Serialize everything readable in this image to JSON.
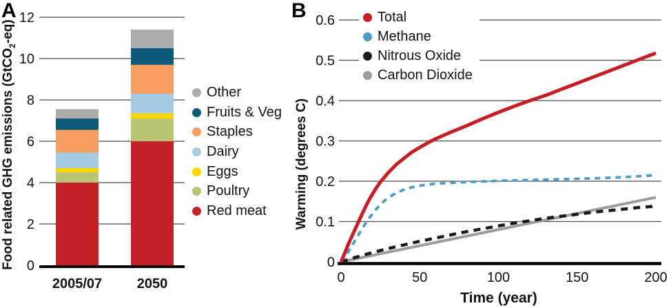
{
  "panels": [
    {
      "letter": "A",
      "y_axis_title_pre": "Food related GHG emissions (GtCO",
      "y_axis_title_sub": "2",
      "y_axis_title_post": "-eq)"
    },
    {
      "letter": "B",
      "y_axis_title": "Warming (degrees C)",
      "x_axis_title": "Time (year)"
    }
  ],
  "chart_data": [
    {
      "type": "bar",
      "stacked": true,
      "title": "",
      "xlabel": "",
      "ylabel": "Food related GHG emissions (GtCO2-eq)",
      "categories": [
        "2005/07",
        "2050"
      ],
      "ylim": [
        0,
        12
      ],
      "yticks": [
        0,
        2,
        4,
        6,
        8,
        10,
        12
      ],
      "ytick_labels": [
        "0",
        "2",
        "4",
        "6",
        "8",
        "10",
        "12"
      ],
      "grid": "horizontal",
      "legend_position": "right",
      "legend_order_top_to_bottom": [
        "Other",
        "Fruits & Veg",
        "Staples",
        "Dairy",
        "Eggs",
        "Poultry",
        "Red meat"
      ],
      "series": [
        {
          "name": "Red meat",
          "color": "#c32127",
          "values": [
            4.0,
            6.0
          ]
        },
        {
          "name": "Poultry",
          "color": "#b9c573",
          "values": [
            0.5,
            1.1
          ]
        },
        {
          "name": "Eggs",
          "color": "#fdd703",
          "values": [
            0.2,
            0.25
          ]
        },
        {
          "name": "Dairy",
          "color": "#a5cbe2",
          "values": [
            0.75,
            0.95
          ]
        },
        {
          "name": "Staples",
          "color": "#f79f60",
          "values": [
            1.1,
            1.4
          ]
        },
        {
          "name": "Fruits & Veg",
          "color": "#0d5a78",
          "values": [
            0.55,
            0.8
          ]
        },
        {
          "name": "Other",
          "color": "#ababab",
          "values": [
            0.45,
            0.9
          ]
        }
      ],
      "totals": [
        7.55,
        11.4
      ]
    },
    {
      "type": "line",
      "title": "",
      "xlabel": "Time (year)",
      "ylabel": "Warming (degrees C)",
      "xlim": [
        0,
        200
      ],
      "ylim": [
        0,
        0.6
      ],
      "xticks": [
        0,
        50,
        100,
        150,
        200
      ],
      "xtick_labels": [
        "0",
        "50",
        "100",
        "150",
        "200"
      ],
      "yticks": [
        0,
        0.1,
        0.2,
        0.3,
        0.4,
        0.5,
        0.6
      ],
      "ytick_labels": [
        "0",
        "0.1",
        "0.2",
        "0.3",
        "0.4",
        "0.5",
        "0.6"
      ],
      "grid": "horizontal",
      "legend_position": "top-left",
      "series": [
        {
          "name": "Total",
          "color": "#c41e27",
          "style": "solid",
          "points": [
            [
              0,
              0
            ],
            [
              3,
              0.028
            ],
            [
              5,
              0.047
            ],
            [
              8,
              0.073
            ],
            [
              10,
              0.09
            ],
            [
              12,
              0.107
            ],
            [
              15,
              0.132
            ],
            [
              18,
              0.155
            ],
            [
              20,
              0.168
            ],
            [
              22,
              0.181
            ],
            [
              25,
              0.198
            ],
            [
              28,
              0.212
            ],
            [
              30,
              0.221
            ],
            [
              35,
              0.241
            ],
            [
              40,
              0.257
            ],
            [
              45,
              0.272
            ],
            [
              50,
              0.284
            ],
            [
              55,
              0.295
            ],
            [
              60,
              0.305
            ],
            [
              70,
              0.322
            ],
            [
              80,
              0.338
            ],
            [
              90,
              0.355
            ],
            [
              100,
              0.371
            ],
            [
              110,
              0.386
            ],
            [
              120,
              0.4
            ],
            [
              130,
              0.413
            ],
            [
              140,
              0.428
            ],
            [
              150,
              0.443
            ],
            [
              160,
              0.458
            ],
            [
              170,
              0.473
            ],
            [
              180,
              0.488
            ],
            [
              190,
              0.503
            ],
            [
              200,
              0.518
            ]
          ]
        },
        {
          "name": "Methane",
          "color": "#4a9cc3",
          "style": "dashed",
          "points": [
            [
              0,
              0
            ],
            [
              3,
              0.015
            ],
            [
              5,
              0.027
            ],
            [
              8,
              0.047
            ],
            [
              10,
              0.06
            ],
            [
              12,
              0.073
            ],
            [
              15,
              0.092
            ],
            [
              18,
              0.109
            ],
            [
              20,
              0.119
            ],
            [
              22,
              0.129
            ],
            [
              25,
              0.142
            ],
            [
              28,
              0.153
            ],
            [
              30,
              0.159
            ],
            [
              35,
              0.171
            ],
            [
              40,
              0.179
            ],
            [
              45,
              0.185
            ],
            [
              50,
              0.189
            ],
            [
              60,
              0.194
            ],
            [
              70,
              0.196
            ],
            [
              80,
              0.198
            ],
            [
              100,
              0.201
            ],
            [
              120,
              0.203
            ],
            [
              140,
              0.205
            ],
            [
              160,
              0.207
            ],
            [
              180,
              0.21
            ],
            [
              200,
              0.215
            ]
          ]
        },
        {
          "name": "Nitrous Oxide",
          "color": "#1a1a1a",
          "style": "dashed",
          "points": [
            [
              0,
              0
            ],
            [
              10,
              0.012
            ],
            [
              20,
              0.023
            ],
            [
              30,
              0.033
            ],
            [
              40,
              0.042
            ],
            [
              50,
              0.051
            ],
            [
              60,
              0.059
            ],
            [
              70,
              0.067
            ],
            [
              80,
              0.075
            ],
            [
              90,
              0.082
            ],
            [
              100,
              0.089
            ],
            [
              110,
              0.096
            ],
            [
              120,
              0.102
            ],
            [
              130,
              0.108
            ],
            [
              140,
              0.113
            ],
            [
              150,
              0.118
            ],
            [
              160,
              0.123
            ],
            [
              170,
              0.127
            ],
            [
              180,
              0.131
            ],
            [
              190,
              0.135
            ],
            [
              200,
              0.138
            ]
          ]
        },
        {
          "name": "Carbon Dioxide",
          "color": "#9c9c9c",
          "style": "solid",
          "points": [
            [
              0,
              0
            ],
            [
              50,
              0.04
            ],
            [
              100,
              0.08
            ],
            [
              150,
              0.12
            ],
            [
              200,
              0.16
            ]
          ]
        }
      ]
    }
  ]
}
